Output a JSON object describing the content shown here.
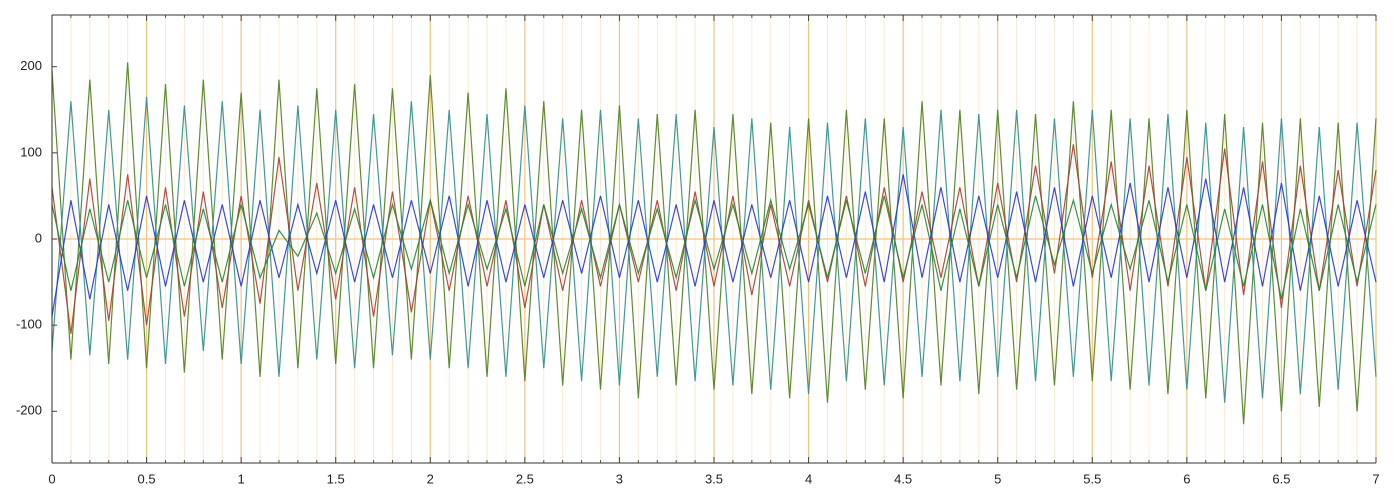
{
  "chart_data": {
    "type": "line",
    "xlim": [
      0,
      7
    ],
    "ylim": [
      -260,
      260
    ],
    "xticks": [
      0,
      0.5,
      1,
      1.5,
      2,
      2.5,
      3,
      3.5,
      4,
      4.5,
      5,
      5.5,
      6,
      6.5,
      7
    ],
    "xminorticks": [
      0.1,
      0.2,
      0.3,
      0.4,
      0.6,
      0.7,
      0.8,
      0.9,
      1.1,
      1.2,
      1.3,
      1.4,
      1.6,
      1.7,
      1.8,
      1.9,
      2.1,
      2.2,
      2.3,
      2.4,
      2.6,
      2.7,
      2.8,
      2.9,
      3.1,
      3.2,
      3.3,
      3.4,
      3.6,
      3.7,
      3.8,
      3.9,
      4.1,
      4.2,
      4.3,
      4.4,
      4.6,
      4.7,
      4.8,
      4.9,
      5.1,
      5.2,
      5.3,
      5.4,
      5.6,
      5.7,
      5.8,
      5.9,
      6.1,
      6.2,
      6.3,
      6.4,
      6.6,
      6.7,
      6.8,
      6.9
    ],
    "yticks": [
      -200,
      -100,
      0,
      100,
      200
    ],
    "grid": true,
    "grid_color": "#f5c27a",
    "x": [
      0,
      0.1,
      0.2,
      0.3,
      0.4,
      0.5,
      0.6,
      0.7,
      0.8,
      0.9,
      1,
      1.1,
      1.2,
      1.3,
      1.4,
      1.5,
      1.6,
      1.7,
      1.8,
      1.9,
      2,
      2.1,
      2.2,
      2.3,
      2.4,
      2.5,
      2.6,
      2.7,
      2.8,
      2.9,
      3,
      3.1,
      3.2,
      3.3,
      3.4,
      3.5,
      3.6,
      3.7,
      3.8,
      3.9,
      4,
      4.1,
      4.2,
      4.3,
      4.4,
      4.5,
      4.6,
      4.7,
      4.8,
      4.9,
      5,
      5.1,
      5.2,
      5.3,
      5.4,
      5.5,
      5.6,
      5.7,
      5.8,
      5.9,
      6,
      6.1,
      6.2,
      6.3,
      6.4,
      6.5,
      6.6,
      6.7,
      6.8,
      6.9,
      7
    ],
    "series": [
      {
        "color": "#4d7f1a",
        "values": [
          195,
          -140,
          185,
          -145,
          205,
          -150,
          180,
          -155,
          185,
          -140,
          170,
          -160,
          185,
          -150,
          175,
          -145,
          180,
          -150,
          175,
          -140,
          190,
          -150,
          170,
          -160,
          175,
          -165,
          160,
          -170,
          150,
          -175,
          155,
          -185,
          145,
          -170,
          150,
          -175,
          145,
          -180,
          135,
          -185,
          140,
          -190,
          150,
          -175,
          140,
          -185,
          160,
          -170,
          150,
          -180,
          150,
          -175,
          145,
          -170,
          160,
          -165,
          150,
          -175,
          140,
          -180,
          150,
          -185,
          145,
          -215,
          135,
          -200,
          140,
          -195,
          135,
          -200,
          140
        ]
      },
      {
        "color": "#2a8f8a",
        "values": [
          -130,
          160,
          -135,
          150,
          -140,
          165,
          -145,
          155,
          -130,
          160,
          -145,
          150,
          -160,
          155,
          -140,
          150,
          -150,
          145,
          -135,
          160,
          -140,
          150,
          -150,
          145,
          -160,
          155,
          -150,
          140,
          -165,
          150,
          -170,
          140,
          -160,
          145,
          -165,
          130,
          -170,
          140,
          -175,
          130,
          -180,
          135,
          -165,
          140,
          -170,
          130,
          -160,
          150,
          -165,
          145,
          -160,
          150,
          -165,
          140,
          -160,
          150,
          -165,
          140,
          -170,
          145,
          -175,
          135,
          -190,
          130,
          -185,
          140,
          -180,
          130,
          -175,
          135,
          -160
        ]
      },
      {
        "color": "#b03a2a",
        "values": [
          60,
          -110,
          70,
          -95,
          75,
          -100,
          60,
          -90,
          55,
          -80,
          50,
          -75,
          95,
          -60,
          65,
          -70,
          60,
          -90,
          55,
          -85,
          45,
          -60,
          50,
          -55,
          45,
          -80,
          40,
          -60,
          45,
          -55,
          40,
          -50,
          45,
          -60,
          55,
          -55,
          50,
          -65,
          40,
          -55,
          45,
          -50,
          50,
          -55,
          60,
          -50,
          55,
          -45,
          60,
          -55,
          65,
          -50,
          85,
          -40,
          110,
          -45,
          90,
          -60,
          85,
          -55,
          95,
          -60,
          105,
          -65,
          90,
          -80,
          85,
          -60,
          80,
          -55,
          80
        ]
      },
      {
        "color": "#2233e6",
        "values": [
          -90,
          45,
          -70,
          40,
          -60,
          50,
          -55,
          45,
          -50,
          40,
          -55,
          45,
          -45,
          40,
          -40,
          45,
          -50,
          40,
          -45,
          45,
          -40,
          50,
          -55,
          45,
          -50,
          40,
          -45,
          45,
          -40,
          50,
          -45,
          45,
          -50,
          40,
          -55,
          45,
          -50,
          40,
          -45,
          45,
          -50,
          50,
          -45,
          55,
          -50,
          75,
          -45,
          60,
          -50,
          50,
          -45,
          55,
          -50,
          60,
          -55,
          50,
          -45,
          65,
          -50,
          60,
          -45,
          70,
          -50,
          60,
          -55,
          65,
          -60,
          50,
          -55,
          45,
          -50
        ]
      },
      {
        "color": "#1f8a2a",
        "values": [
          40,
          -60,
          35,
          -50,
          45,
          -45,
          40,
          -55,
          35,
          -50,
          40,
          -45,
          10,
          -20,
          30,
          -40,
          35,
          -45,
          40,
          -35,
          45,
          -40,
          40,
          -35,
          35,
          -55,
          40,
          -40,
          35,
          -45,
          40,
          -40,
          35,
          -45,
          45,
          -35,
          40,
          -40,
          45,
          -35,
          40,
          -45,
          45,
          -40,
          50,
          -45,
          40,
          -60,
          35,
          -55,
          40,
          -45,
          50,
          -30,
          45,
          -40,
          40,
          -35,
          45,
          -50,
          40,
          -60,
          35,
          -55,
          40,
          -70,
          35,
          -60,
          40,
          -50,
          40
        ]
      }
    ]
  }
}
